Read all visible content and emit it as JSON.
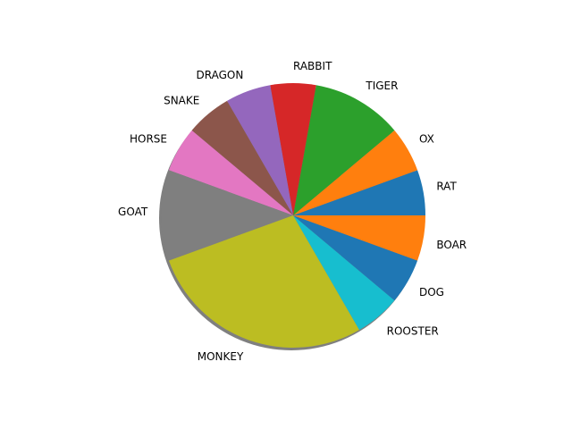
{
  "chart_data": {
    "type": "pie",
    "title": "",
    "labels": [
      "RAT",
      "OX",
      "TIGER",
      "RABBIT",
      "DRAGON",
      "SNAKE",
      "HORSE",
      "GOAT",
      "MONKEY",
      "ROOSTER",
      "DOG",
      "BOAR"
    ],
    "values": [
      1,
      1,
      2,
      1,
      1,
      1,
      1,
      2,
      5,
      1,
      1,
      1
    ],
    "colors": [
      "#1f77b4",
      "#ff7f0e",
      "#2ca02c",
      "#d62728",
      "#9467bd",
      "#8c564b",
      "#e377c2",
      "#7f7f7f",
      "#bcbd22",
      "#17becf",
      "#1f77b4",
      "#ff7f0e"
    ],
    "start_angle": 0,
    "direction": "counterclockwise",
    "shadow": true
  }
}
